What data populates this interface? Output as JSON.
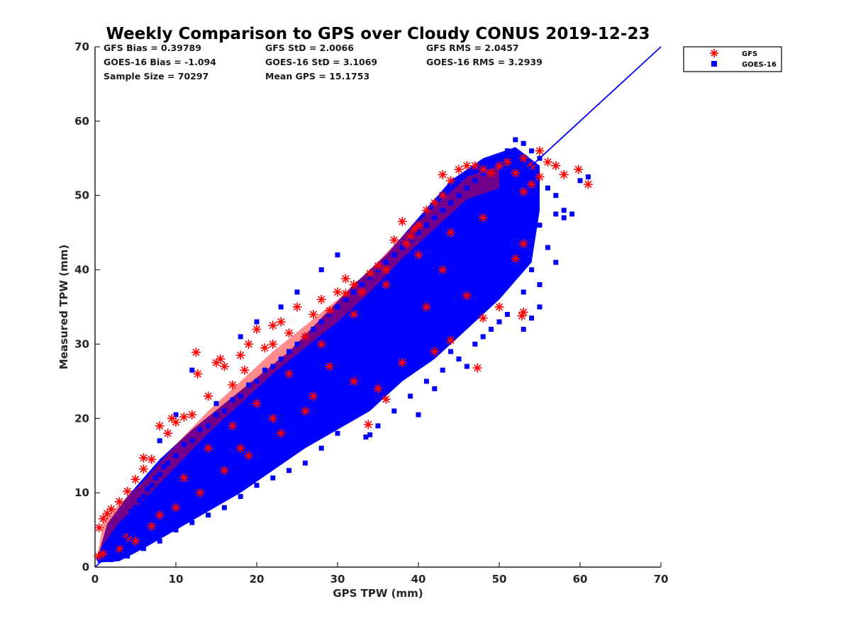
{
  "colors": {
    "gfs": "#ff0000",
    "goes": "#0000ff",
    "axis": "#262626",
    "background": "#ffffff"
  },
  "stats": {
    "gfs_bias": "GFS Bias = 0.39789",
    "gfs_std": "GFS StD = 2.0066",
    "gfs_rms": "GFS RMS = 2.0457",
    "goes_bias": "GOES-16 Bias = -1.094",
    "goes_std": "GOES-16 StD = 3.1069",
    "goes_rms": "GOES-16 RMS = 3.2939",
    "sample_size": "Sample Size = 70297",
    "mean_gps": "Mean GPS = 15.1753"
  },
  "chart_data": {
    "type": "scatter",
    "title": "Weekly Comparison to GPS over Cloudy CONUS 2019-12-23",
    "xlabel": "GPS TPW (mm)",
    "ylabel": "Measured TPW (mm)",
    "xlim": [
      0,
      70
    ],
    "ylim": [
      0,
      70
    ],
    "xticks": [
      0,
      10,
      20,
      30,
      40,
      50,
      60,
      70
    ],
    "yticks": [
      0,
      10,
      20,
      30,
      40,
      50,
      60,
      70
    ],
    "grid": false,
    "legend_position": "outside-top-right",
    "reference_line": {
      "from": [
        0,
        0
      ],
      "to": [
        70,
        70
      ],
      "color": "#0000ff"
    },
    "series": [
      {
        "name": "GFS",
        "marker": "asterisk",
        "color": "#ff0000",
        "points": [
          [
            0.5,
            5.3
          ],
          [
            1,
            6.5
          ],
          [
            1.5,
            7.2
          ],
          [
            2,
            7.8
          ],
          [
            3,
            8.8
          ],
          [
            4,
            10.2
          ],
          [
            5,
            11.8
          ],
          [
            6,
            13.2
          ],
          [
            6,
            14.7
          ],
          [
            7,
            14.5
          ],
          [
            8,
            19
          ],
          [
            9,
            18
          ],
          [
            9.5,
            20
          ],
          [
            10,
            19.5
          ],
          [
            11,
            20.2
          ],
          [
            12,
            20.5
          ],
          [
            12.5,
            28.9
          ],
          [
            12.7,
            26
          ],
          [
            14,
            23
          ],
          [
            15,
            27.5
          ],
          [
            15.5,
            28
          ],
          [
            16,
            27
          ],
          [
            17,
            24.5
          ],
          [
            18,
            28.5
          ],
          [
            18.5,
            26.5
          ],
          [
            19,
            30
          ],
          [
            20,
            32
          ],
          [
            21,
            29.5
          ],
          [
            22,
            32.5
          ],
          [
            22,
            30
          ],
          [
            23,
            33
          ],
          [
            24,
            31.5
          ],
          [
            25,
            35
          ],
          [
            26,
            31
          ],
          [
            27,
            34
          ],
          [
            28,
            36
          ],
          [
            29,
            34.5
          ],
          [
            30,
            37
          ],
          [
            31,
            38.8
          ],
          [
            31,
            36.8
          ],
          [
            32,
            38
          ],
          [
            33,
            37
          ],
          [
            34,
            39.5
          ],
          [
            35,
            40.5
          ],
          [
            36,
            40
          ],
          [
            37,
            44
          ],
          [
            38,
            46.5
          ],
          [
            38.5,
            43.5
          ],
          [
            39,
            44.5
          ],
          [
            39.5,
            45.5
          ],
          [
            40,
            46
          ],
          [
            41,
            48
          ],
          [
            42,
            49
          ],
          [
            43,
            50
          ],
          [
            43,
            52.8
          ],
          [
            44,
            52
          ],
          [
            45,
            53.5
          ],
          [
            46,
            54
          ],
          [
            47,
            54
          ],
          [
            48,
            53.5
          ],
          [
            49,
            53
          ],
          [
            50,
            54
          ],
          [
            51,
            54.5
          ],
          [
            52,
            53
          ],
          [
            53,
            55
          ],
          [
            54,
            54
          ],
          [
            55,
            56
          ],
          [
            56,
            54.5
          ],
          [
            57,
            54
          ],
          [
            58,
            52.8
          ],
          [
            59.8,
            53.5
          ],
          [
            61,
            51.5
          ],
          [
            55,
            52.5
          ],
          [
            54,
            51.5
          ],
          [
            53,
            50.5
          ],
          [
            53,
            34.3
          ],
          [
            52.8,
            33.8
          ],
          [
            47.3,
            26.8
          ],
          [
            50,
            35
          ],
          [
            48,
            33.5
          ],
          [
            44,
            30.5
          ],
          [
            42,
            29
          ],
          [
            38,
            27.5
          ],
          [
            35,
            24
          ],
          [
            33.8,
            19.2
          ],
          [
            32,
            25
          ],
          [
            36,
            22.6
          ],
          [
            26,
            21
          ],
          [
            23,
            18
          ],
          [
            19,
            15
          ],
          [
            16,
            13
          ],
          [
            13,
            10
          ],
          [
            10,
            8
          ],
          [
            7,
            5.5
          ],
          [
            5,
            3.5
          ],
          [
            3,
            2.5
          ],
          [
            1,
            1.8
          ],
          [
            0.4,
            1.5
          ],
          [
            4,
            4
          ],
          [
            8,
            7
          ],
          [
            11,
            12
          ],
          [
            14,
            16
          ],
          [
            17,
            19
          ],
          [
            20,
            22
          ],
          [
            24,
            26
          ],
          [
            28,
            30
          ],
          [
            32,
            34
          ],
          [
            36,
            38
          ],
          [
            40,
            42
          ],
          [
            44,
            45
          ],
          [
            48,
            47
          ],
          [
            52,
            41.5
          ],
          [
            53,
            43.5
          ],
          [
            46,
            36.5
          ],
          [
            43,
            40
          ],
          [
            41,
            35
          ],
          [
            29,
            27
          ],
          [
            27,
            23
          ],
          [
            22,
            20
          ],
          [
            18,
            16
          ]
        ]
      },
      {
        "name": "GOES-16",
        "marker": "square",
        "color": "#0000ff",
        "points": [
          [
            0.5,
            1.2
          ],
          [
            1,
            2
          ],
          [
            1.5,
            3
          ],
          [
            2,
            3.5
          ],
          [
            2.5,
            4.5
          ],
          [
            3,
            5
          ],
          [
            3.5,
            6
          ],
          [
            4,
            6.5
          ],
          [
            4.5,
            7.5
          ],
          [
            5,
            8
          ],
          [
            5.5,
            9
          ],
          [
            6,
            9.5
          ],
          [
            6.5,
            10.5
          ],
          [
            7,
            11
          ],
          [
            7.5,
            12
          ],
          [
            8,
            12.5
          ],
          [
            8.5,
            13.5
          ],
          [
            9,
            14
          ],
          [
            10,
            15
          ],
          [
            11,
            16.5
          ],
          [
            12,
            17
          ],
          [
            13,
            18.5
          ],
          [
            14,
            19
          ],
          [
            15,
            20.5
          ],
          [
            16,
            21
          ],
          [
            17,
            22.5
          ],
          [
            18,
            23
          ],
          [
            19,
            24.5
          ],
          [
            20,
            25
          ],
          [
            21,
            26.5
          ],
          [
            22,
            27
          ],
          [
            23,
            28
          ],
          [
            24,
            29
          ],
          [
            25,
            30
          ],
          [
            26,
            31
          ],
          [
            27,
            32
          ],
          [
            28,
            33
          ],
          [
            29,
            34
          ],
          [
            30,
            35
          ],
          [
            31,
            36
          ],
          [
            32,
            37
          ],
          [
            33,
            38
          ],
          [
            34,
            39
          ],
          [
            35,
            40
          ],
          [
            36,
            41
          ],
          [
            37,
            42
          ],
          [
            38,
            43
          ],
          [
            39,
            44
          ],
          [
            40,
            45
          ],
          [
            41,
            46
          ],
          [
            42,
            47
          ],
          [
            43,
            48
          ],
          [
            44,
            49
          ],
          [
            45,
            50
          ],
          [
            46,
            51
          ],
          [
            47,
            52
          ],
          [
            48,
            53
          ],
          [
            49,
            54
          ],
          [
            50,
            55
          ],
          [
            51,
            56
          ],
          [
            52,
            57.5
          ],
          [
            53,
            57
          ],
          [
            54,
            56
          ],
          [
            55,
            55
          ],
          [
            56,
            51
          ],
          [
            57,
            50
          ],
          [
            58,
            48
          ],
          [
            59,
            47.5
          ],
          [
            60,
            52
          ],
          [
            61,
            52.5
          ],
          [
            3,
            2
          ],
          [
            5,
            4
          ],
          [
            7,
            6
          ],
          [
            9,
            8
          ],
          [
            11,
            10
          ],
          [
            13,
            12
          ],
          [
            15,
            14
          ],
          [
            17,
            16
          ],
          [
            19,
            17.5
          ],
          [
            21,
            19
          ],
          [
            23,
            21
          ],
          [
            25,
            22.5
          ],
          [
            27,
            24
          ],
          [
            29,
            26
          ],
          [
            31,
            28
          ],
          [
            33,
            30
          ],
          [
            35,
            32
          ],
          [
            37,
            34
          ],
          [
            39,
            35.5
          ],
          [
            41,
            37
          ],
          [
            43,
            38.5
          ],
          [
            45,
            40
          ],
          [
            47,
            41.5
          ],
          [
            49,
            43
          ],
          [
            51,
            44
          ],
          [
            53,
            45
          ],
          [
            55,
            46
          ],
          [
            57,
            47.5
          ],
          [
            54,
            40
          ],
          [
            55,
            38
          ],
          [
            53,
            37
          ],
          [
            51,
            34
          ],
          [
            49,
            32
          ],
          [
            47,
            30
          ],
          [
            45,
            28
          ],
          [
            43,
            26.5
          ],
          [
            41,
            25
          ],
          [
            39,
            23
          ],
          [
            37,
            21
          ],
          [
            35,
            19
          ],
          [
            34,
            17.8
          ],
          [
            30,
            18
          ],
          [
            28,
            16
          ],
          [
            26,
            14
          ],
          [
            24,
            13
          ],
          [
            22,
            12
          ],
          [
            20,
            11
          ],
          [
            18,
            9.5
          ],
          [
            16,
            8
          ],
          [
            14,
            7
          ],
          [
            12,
            6
          ],
          [
            10,
            5
          ],
          [
            8,
            3.5
          ],
          [
            6,
            2.5
          ],
          [
            4,
            1.5
          ],
          [
            2,
            1
          ],
          [
            42,
            24
          ],
          [
            40,
            20.5
          ],
          [
            33.5,
            17.5
          ],
          [
            56,
            43
          ],
          [
            58,
            47
          ],
          [
            57,
            41
          ],
          [
            55,
            35
          ],
          [
            53,
            32
          ],
          [
            54,
            33.5
          ],
          [
            50,
            33
          ],
          [
            48,
            31
          ],
          [
            46,
            27
          ],
          [
            44,
            29
          ],
          [
            38,
            28.5
          ],
          [
            10,
            20.5
          ],
          [
            8,
            17
          ],
          [
            12,
            26.5
          ],
          [
            15,
            22
          ],
          [
            18,
            31
          ],
          [
            20,
            33
          ],
          [
            23,
            35
          ],
          [
            25,
            37
          ],
          [
            28,
            40
          ],
          [
            30,
            42
          ]
        ]
      }
    ]
  }
}
